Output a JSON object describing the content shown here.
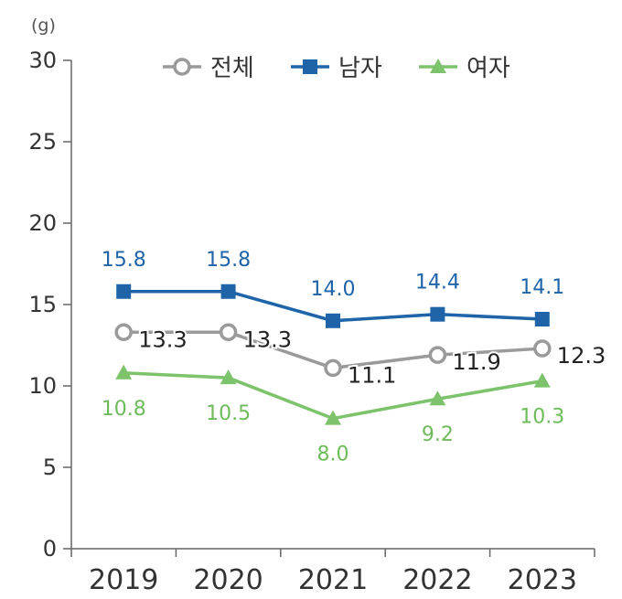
{
  "chart_data": {
    "type": "line",
    "y_unit": "(g)",
    "categories": [
      "2019",
      "2020",
      "2021",
      "2022",
      "2023"
    ],
    "ylim": [
      0,
      30
    ],
    "yticks": [
      "0",
      "5",
      "10",
      "15",
      "20",
      "25",
      "30"
    ],
    "grid": false,
    "legend_position": "top",
    "series": [
      {
        "name": "전체",
        "values": [
          13.3,
          13.3,
          11.1,
          11.9,
          12.3
        ],
        "labels": [
          "13.3",
          "13.3",
          "11.1",
          "11.9",
          "12.3"
        ],
        "color": "#9a9a9a",
        "marker": "circle-open"
      },
      {
        "name": "남자",
        "values": [
          15.8,
          15.8,
          14.0,
          14.4,
          14.1
        ],
        "labels": [
          "15.8",
          "15.8",
          "14.0",
          "14.4",
          "14.1"
        ],
        "color": "#1f63a8",
        "marker": "square"
      },
      {
        "name": "여자",
        "values": [
          10.8,
          10.5,
          8.0,
          9.2,
          10.3
        ],
        "labels": [
          "10.8",
          "10.5",
          "8.0",
          "9.2",
          "10.3"
        ],
        "color": "#7dc36b",
        "marker": "triangle"
      }
    ]
  }
}
